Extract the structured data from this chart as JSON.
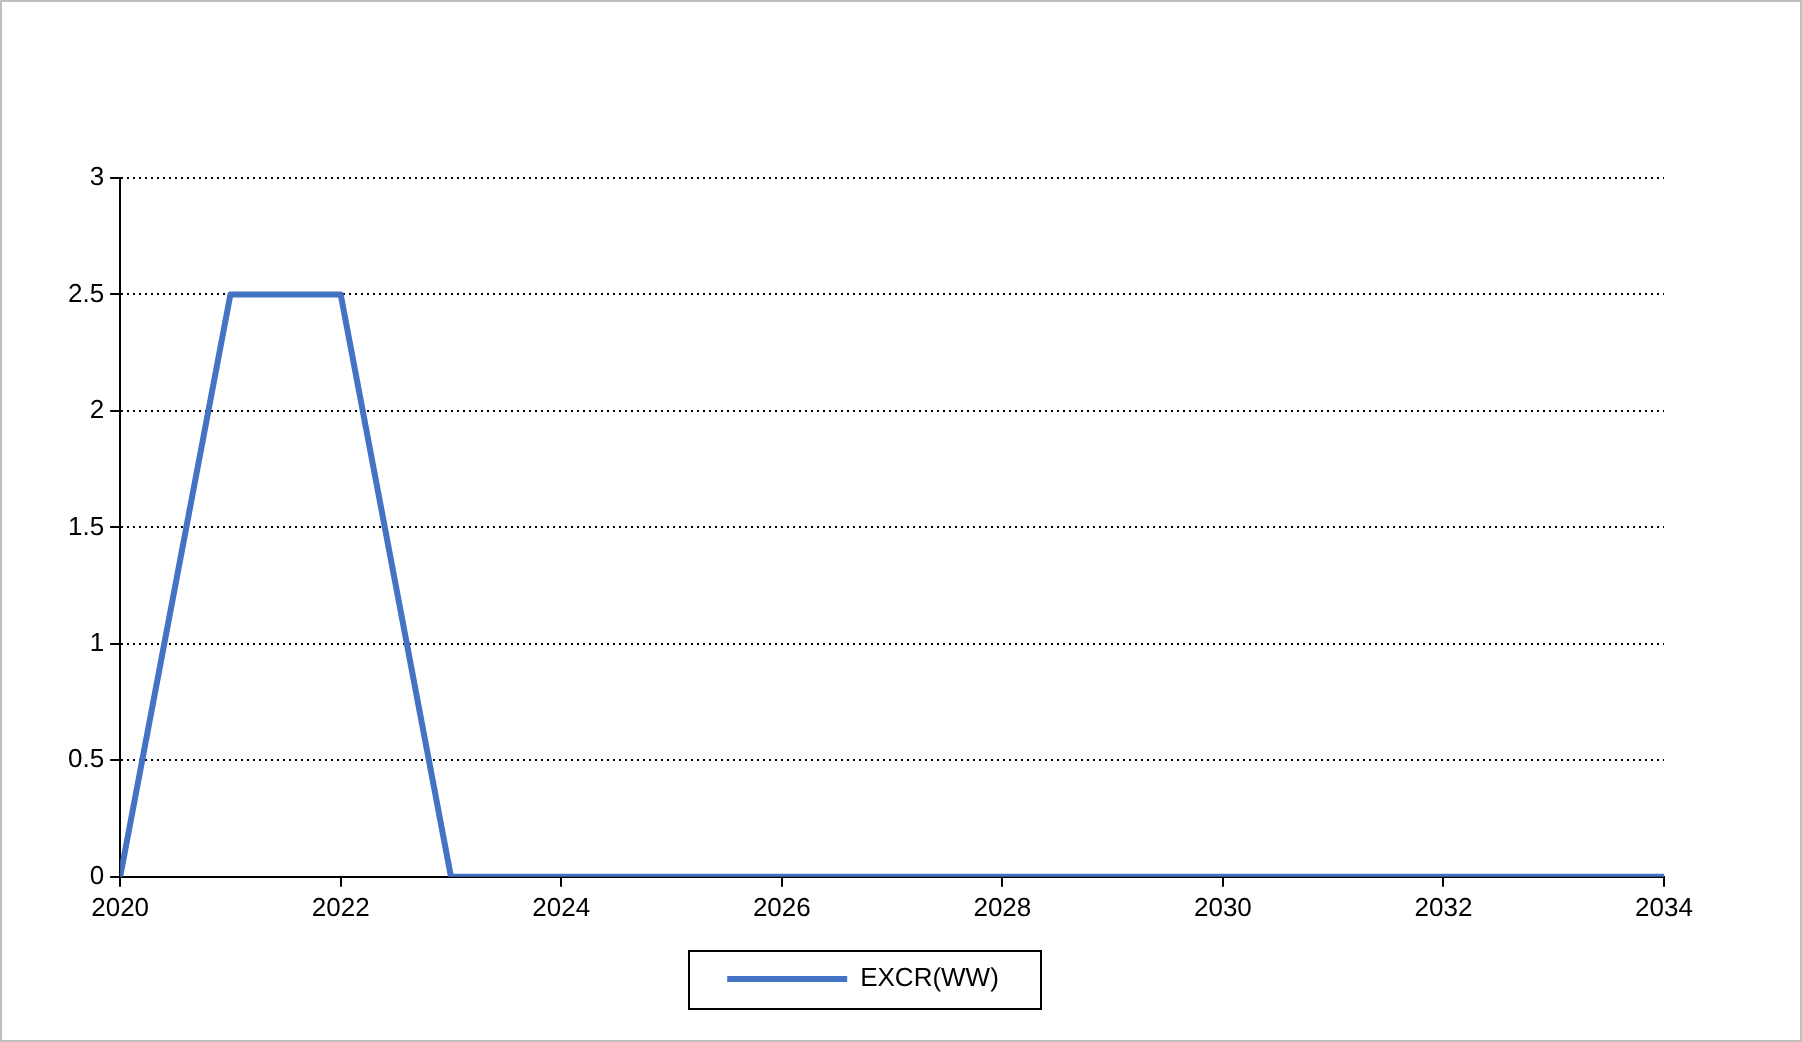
{
  "chart_data": {
    "type": "line",
    "x": [
      2020,
      2021,
      2022,
      2023,
      2024,
      2025,
      2026,
      2027,
      2028,
      2029,
      2030,
      2031,
      2032,
      2033,
      2034
    ],
    "series": [
      {
        "name": "EXCR(WW)",
        "color": "#4472c4",
        "values": [
          0,
          2.5,
          2.5,
          0,
          0,
          0,
          0,
          0,
          0,
          0,
          0,
          0,
          0,
          0,
          0
        ]
      }
    ],
    "xlim": [
      2020,
      2034
    ],
    "xticks": [
      2020,
      2022,
      2024,
      2026,
      2028,
      2030,
      2032,
      2034
    ],
    "ylim": [
      0,
      3
    ],
    "yticks": [
      0,
      0.5,
      1,
      1.5,
      2,
      2.5,
      3
    ],
    "grid": "y",
    "legend": "bottom",
    "marker": "none",
    "line_style": "solid"
  }
}
